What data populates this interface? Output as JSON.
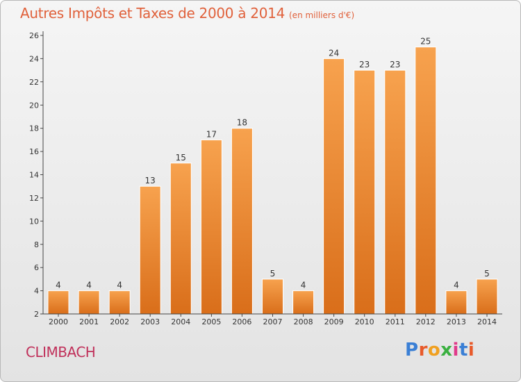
{
  "header": {
    "title": "Autres Impôts et Taxes de 2000 à 2014",
    "subtitle": "(en milliers d'€)"
  },
  "footer": {
    "place": "CLIMBACH",
    "logo_letters": [
      "P",
      "r",
      "o",
      "x",
      "i",
      "t",
      "i"
    ],
    "logo_colors": [
      "#3a7fd5",
      "#e85a2a",
      "#f0a020",
      "#3ab040",
      "#e03a8a",
      "#3a7fd5",
      "#e85a2a"
    ]
  },
  "colors": {
    "bar_top": "#f7a24e",
    "bar_bottom": "#d96e1a",
    "axis": "#444444",
    "title": "#e0603a",
    "place": "#c0305a"
  },
  "chart_data": {
    "type": "bar",
    "title": "Autres Impôts et Taxes de 2000 à 2014",
    "subtitle": "(en milliers d'€)",
    "categories": [
      "2000",
      "2001",
      "2002",
      "2003",
      "2004",
      "2005",
      "2006",
      "2007",
      "2008",
      "2009",
      "2010",
      "2011",
      "2012",
      "2013",
      "2014"
    ],
    "values": [
      4,
      4,
      4,
      13,
      15,
      17,
      18,
      5,
      4,
      24,
      23,
      23,
      25,
      4,
      5
    ],
    "ylim": [
      2,
      26
    ],
    "yticks": [
      2,
      4,
      6,
      8,
      10,
      12,
      14,
      16,
      18,
      20,
      22,
      24,
      26
    ],
    "grid": false,
    "legend": "none"
  }
}
